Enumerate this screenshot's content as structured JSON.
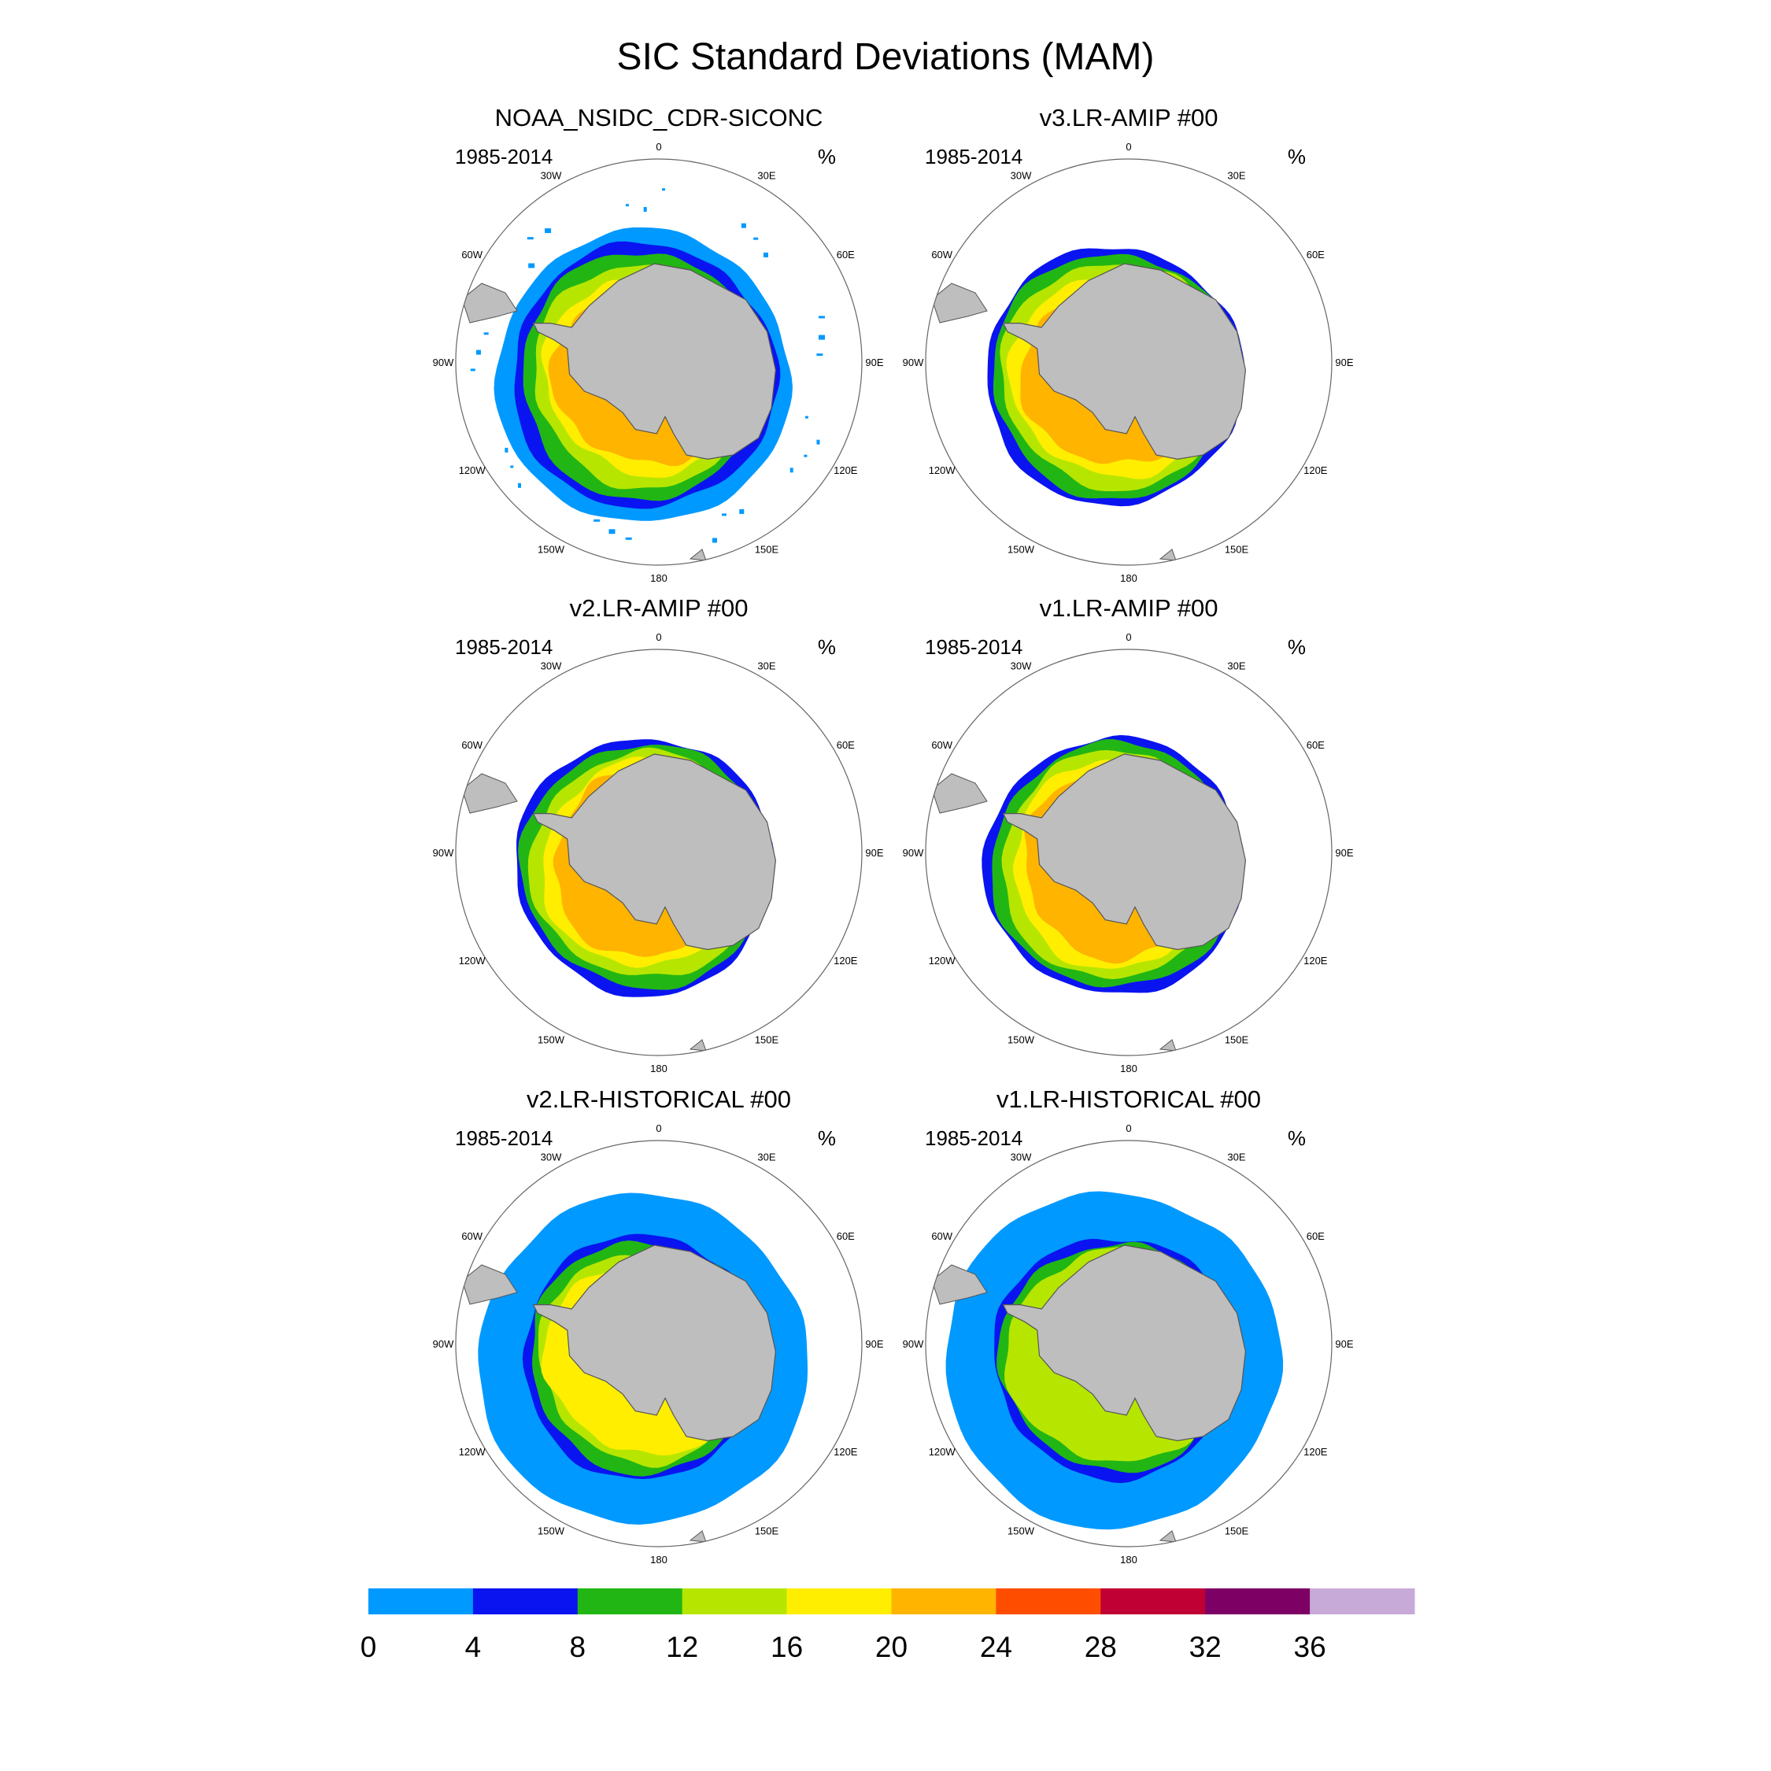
{
  "chart_data": {
    "type": "polar-stereographic contour maps (6 panels) with shared color bar",
    "title": "SIC Standard Deviations (MAM)",
    "panels": [
      {
        "title": "NOAA_NSIDC_CDR-SICONC",
        "left_label": "1985-2014",
        "right_label": "%"
      },
      {
        "title": "v3.LR-AMIP  #00",
        "left_label": "1985-2014",
        "right_label": "%"
      },
      {
        "title": "v2.LR-AMIP  #00",
        "left_label": "1985-2014",
        "right_label": "%"
      },
      {
        "title": "v1.LR-AMIP  #00",
        "left_label": "1985-2014",
        "right_label": "%"
      },
      {
        "title": "v2.LR-HISTORICAL  #00",
        "left_label": "1985-2014",
        "right_label": "%"
      },
      {
        "title": "v1.LR-HISTORICAL  #00",
        "left_label": "1985-2014",
        "right_label": "%"
      }
    ],
    "longitude_labels": [
      {
        "lon": 0,
        "text": "0"
      },
      {
        "lon": 30,
        "text": "30E"
      },
      {
        "lon": 60,
        "text": "60E"
      },
      {
        "lon": 90,
        "text": "90E"
      },
      {
        "lon": 120,
        "text": "120E"
      },
      {
        "lon": 150,
        "text": "150E"
      },
      {
        "lon": 180,
        "text": "180"
      },
      {
        "lon": -150,
        "text": "150W"
      },
      {
        "lon": -120,
        "text": "120W"
      },
      {
        "lon": -90,
        "text": "90W"
      },
      {
        "lon": -60,
        "text": "60W"
      },
      {
        "lon": -30,
        "text": "30W"
      }
    ],
    "colorbar": {
      "levels": [
        0,
        4,
        8,
        12,
        16,
        20,
        24,
        28,
        32,
        36
      ],
      "tick_labels": [
        "0",
        "4",
        "8",
        "12",
        "16",
        "20",
        "24",
        "28",
        "32",
        "36"
      ],
      "colors": [
        "#0099ff",
        "#0a14f0",
        "#22b614",
        "#b6e600",
        "#ffee00",
        "#ffb400",
        "#ff4d00",
        "#c00034",
        "#7d0064",
        "#c8aad8"
      ]
    },
    "colors": {
      "land": "#bebebe",
      "coast": "#555555",
      "ocean": "#ffffff",
      "grid_circle": "#666666"
    }
  }
}
